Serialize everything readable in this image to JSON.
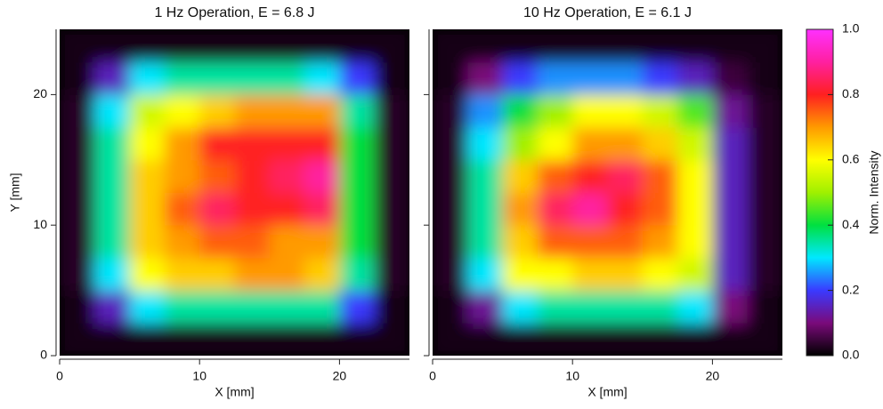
{
  "chart_data": [
    {
      "type": "heatmap",
      "title": "1 Hz Operation, E = 6.8 J",
      "xlabel": "X [mm]",
      "ylabel": "Y [mm]",
      "xlim": [
        0,
        25
      ],
      "ylim": [
        0,
        25
      ],
      "xticks": [
        0,
        10,
        20
      ],
      "yticks": [
        0,
        10,
        20
      ],
      "ytick_labels": true,
      "values": [
        [
          0.02,
          0.02,
          0.02,
          0.02,
          0.02,
          0.02,
          0.02,
          0.02,
          0.02,
          0.02
        ],
        [
          0.02,
          0.15,
          0.3,
          0.35,
          0.35,
          0.35,
          0.35,
          0.35,
          0.2,
          0.02
        ],
        [
          0.03,
          0.3,
          0.6,
          0.65,
          0.65,
          0.7,
          0.7,
          0.65,
          0.35,
          0.03
        ],
        [
          0.03,
          0.35,
          0.65,
          0.7,
          0.75,
          0.75,
          0.7,
          0.7,
          0.4,
          0.03
        ],
        [
          0.03,
          0.35,
          0.65,
          0.75,
          0.85,
          0.8,
          0.8,
          0.85,
          0.4,
          0.03
        ],
        [
          0.03,
          0.35,
          0.65,
          0.7,
          0.75,
          0.8,
          0.85,
          0.9,
          0.4,
          0.03
        ],
        [
          0.03,
          0.35,
          0.6,
          0.7,
          0.8,
          0.8,
          0.8,
          0.8,
          0.4,
          0.03
        ],
        [
          0.03,
          0.3,
          0.55,
          0.6,
          0.65,
          0.7,
          0.7,
          0.7,
          0.35,
          0.03
        ],
        [
          0.02,
          0.15,
          0.3,
          0.35,
          0.35,
          0.35,
          0.35,
          0.3,
          0.2,
          0.02
        ],
        [
          0.02,
          0.02,
          0.02,
          0.02,
          0.02,
          0.02,
          0.02,
          0.02,
          0.02,
          0.02
        ]
      ]
    },
    {
      "type": "heatmap",
      "title": "10 Hz Operation, E = 6.1 J",
      "xlabel": "X [mm]",
      "xlim": [
        0,
        25
      ],
      "ylim": [
        0,
        25
      ],
      "xticks": [
        0,
        10,
        20
      ],
      "yticks": [
        0,
        10,
        20
      ],
      "ytick_labels": false,
      "values": [
        [
          0.02,
          0.02,
          0.02,
          0.02,
          0.02,
          0.02,
          0.02,
          0.02,
          0.02,
          0.02
        ],
        [
          0.02,
          0.12,
          0.3,
          0.35,
          0.35,
          0.35,
          0.35,
          0.3,
          0.1,
          0.02
        ],
        [
          0.03,
          0.3,
          0.6,
          0.6,
          0.65,
          0.65,
          0.6,
          0.55,
          0.15,
          0.03
        ],
        [
          0.03,
          0.35,
          0.65,
          0.75,
          0.75,
          0.75,
          0.7,
          0.6,
          0.15,
          0.03
        ],
        [
          0.03,
          0.35,
          0.7,
          0.85,
          0.9,
          0.8,
          0.75,
          0.6,
          0.15,
          0.03
        ],
        [
          0.03,
          0.35,
          0.65,
          0.75,
          0.8,
          0.85,
          0.75,
          0.6,
          0.15,
          0.03
        ],
        [
          0.03,
          0.3,
          0.5,
          0.6,
          0.7,
          0.7,
          0.65,
          0.55,
          0.15,
          0.03
        ],
        [
          0.03,
          0.25,
          0.4,
          0.5,
          0.6,
          0.6,
          0.55,
          0.45,
          0.12,
          0.03
        ],
        [
          0.02,
          0.1,
          0.2,
          0.25,
          0.25,
          0.25,
          0.2,
          0.15,
          0.05,
          0.02
        ],
        [
          0.02,
          0.02,
          0.02,
          0.02,
          0.02,
          0.02,
          0.02,
          0.02,
          0.02,
          0.02
        ]
      ]
    }
  ],
  "colorbar": {
    "label": "Norm. Intensity",
    "lim": [
      0,
      1
    ],
    "ticks": [
      {
        "value": 0,
        "label": "0.0"
      },
      {
        "value": 0.2,
        "label": "0.2"
      },
      {
        "value": 0.4,
        "label": "0.4"
      },
      {
        "value": 0.6,
        "label": "0.6"
      },
      {
        "value": 0.8,
        "label": "0.8"
      },
      {
        "value": 1,
        "label": "1.0"
      }
    ],
    "colormap": [
      "#000000",
      "#7a0a7a",
      "#3a3aff",
      "#00e8ff",
      "#00e040",
      "#a0f000",
      "#ffff00",
      "#ff9a00",
      "#ff2020",
      "#ff20a0",
      "#ff30ff"
    ]
  }
}
